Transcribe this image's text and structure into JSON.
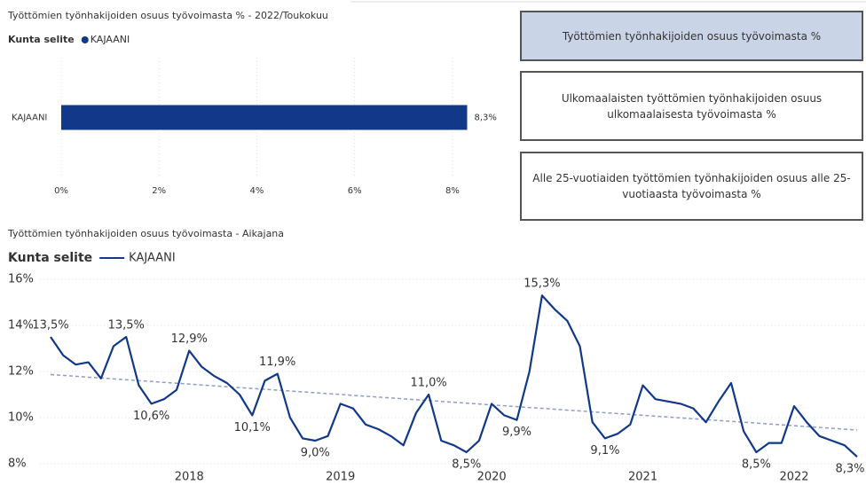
{
  "chart_data": [
    {
      "type": "bar",
      "orientation": "horizontal",
      "title": "Työttömien työnhakijoiden osuus työvoimasta % - 2022/Toukokuu",
      "legend_title": "Kunta selite",
      "categories": [
        "KAJAANI"
      ],
      "series": [
        {
          "name": "KAJAANI",
          "color": "#12388a",
          "values": [
            8.3
          ],
          "value_labels": [
            "8,3%"
          ]
        }
      ],
      "xlim": [
        0,
        8.6
      ],
      "xticks": [
        {
          "value": 0,
          "label": "0%"
        },
        {
          "value": 2,
          "label": "2%"
        },
        {
          "value": 4,
          "label": "4%"
        },
        {
          "value": 6,
          "label": "6%"
        },
        {
          "value": 8,
          "label": "8%"
        }
      ],
      "grid": true
    },
    {
      "type": "line",
      "title": "Työttömien työnhakijoiden osuus työvoimasta - Aikajana",
      "legend_title": "Kunta selite",
      "categories": [
        null,
        null,
        null,
        null,
        null,
        null,
        null,
        null,
        null,
        null,
        null,
        "2018",
        null,
        null,
        null,
        null,
        null,
        null,
        null,
        null,
        null,
        null,
        null,
        "2019",
        null,
        null,
        null,
        null,
        null,
        null,
        null,
        null,
        null,
        null,
        null,
        "2020",
        null,
        null,
        null,
        null,
        null,
        null,
        null,
        null,
        null,
        null,
        null,
        "2021",
        null,
        null,
        null,
        null,
        null,
        null,
        null,
        null,
        null,
        null,
        null,
        "2022",
        null,
        null,
        null,
        null,
        null
      ],
      "series": [
        {
          "name": "KAJAANI",
          "color": "#12388a",
          "values": [
            13.5,
            12.7,
            12.3,
            12.4,
            11.7,
            13.1,
            13.5,
            11.4,
            10.6,
            10.8,
            11.2,
            12.9,
            12.2,
            11.8,
            11.5,
            11.0,
            10.1,
            11.6,
            11.9,
            10.0,
            9.1,
            9.0,
            9.2,
            10.6,
            10.4,
            9.7,
            9.5,
            9.2,
            8.8,
            10.2,
            11.0,
            9.0,
            8.8,
            8.5,
            9.0,
            10.6,
            10.1,
            9.9,
            12.0,
            15.3,
            14.7,
            14.2,
            13.1,
            9.8,
            9.1,
            9.3,
            9.7,
            11.4,
            10.8,
            10.7,
            10.6,
            10.4,
            9.8,
            10.7,
            11.5,
            9.4,
            8.5,
            8.9,
            8.9,
            10.5,
            9.8,
            9.2,
            9.0,
            8.8,
            8.3
          ],
          "value_labels": [
            "13,5%",
            null,
            null,
            null,
            null,
            null,
            "13,5%",
            null,
            "10,6%",
            null,
            null,
            "12,9%",
            null,
            null,
            null,
            null,
            "10,1%",
            null,
            "11,9%",
            null,
            null,
            "9,0%",
            null,
            null,
            null,
            null,
            null,
            null,
            null,
            null,
            "11,0%",
            null,
            null,
            "8,5%",
            null,
            null,
            null,
            "9,9%",
            null,
            "15,3%",
            null,
            null,
            null,
            null,
            "9,1%",
            null,
            null,
            null,
            null,
            null,
            null,
            null,
            null,
            null,
            null,
            null,
            "8,5%",
            null,
            null,
            null,
            null,
            null,
            null,
            null,
            "8,3%"
          ]
        }
      ],
      "trendline": {
        "color": "#8d9dc6"
      },
      "ylim": [
        8,
        16
      ],
      "yticks": [
        {
          "value": 8,
          "label": "8%"
        },
        {
          "value": 10,
          "label": "10%"
        },
        {
          "value": 12,
          "label": "12%"
        },
        {
          "value": 14,
          "label": "14%"
        },
        {
          "value": 16,
          "label": "16%"
        }
      ],
      "grid": true
    }
  ],
  "buttons": [
    {
      "label": "Työttömien työnhakijoiden osuus työvoimasta %",
      "active": true
    },
    {
      "label": "Ulkomaalaisten työttömien työnhakijoiden osuus ulkomaalaisesta työvoimasta %",
      "active": false
    },
    {
      "label": "Alle 25-vuotiaiden työttömien työnhakijoiden osuus alle 25-vuotiaasta työvoimasta %",
      "active": false
    }
  ]
}
